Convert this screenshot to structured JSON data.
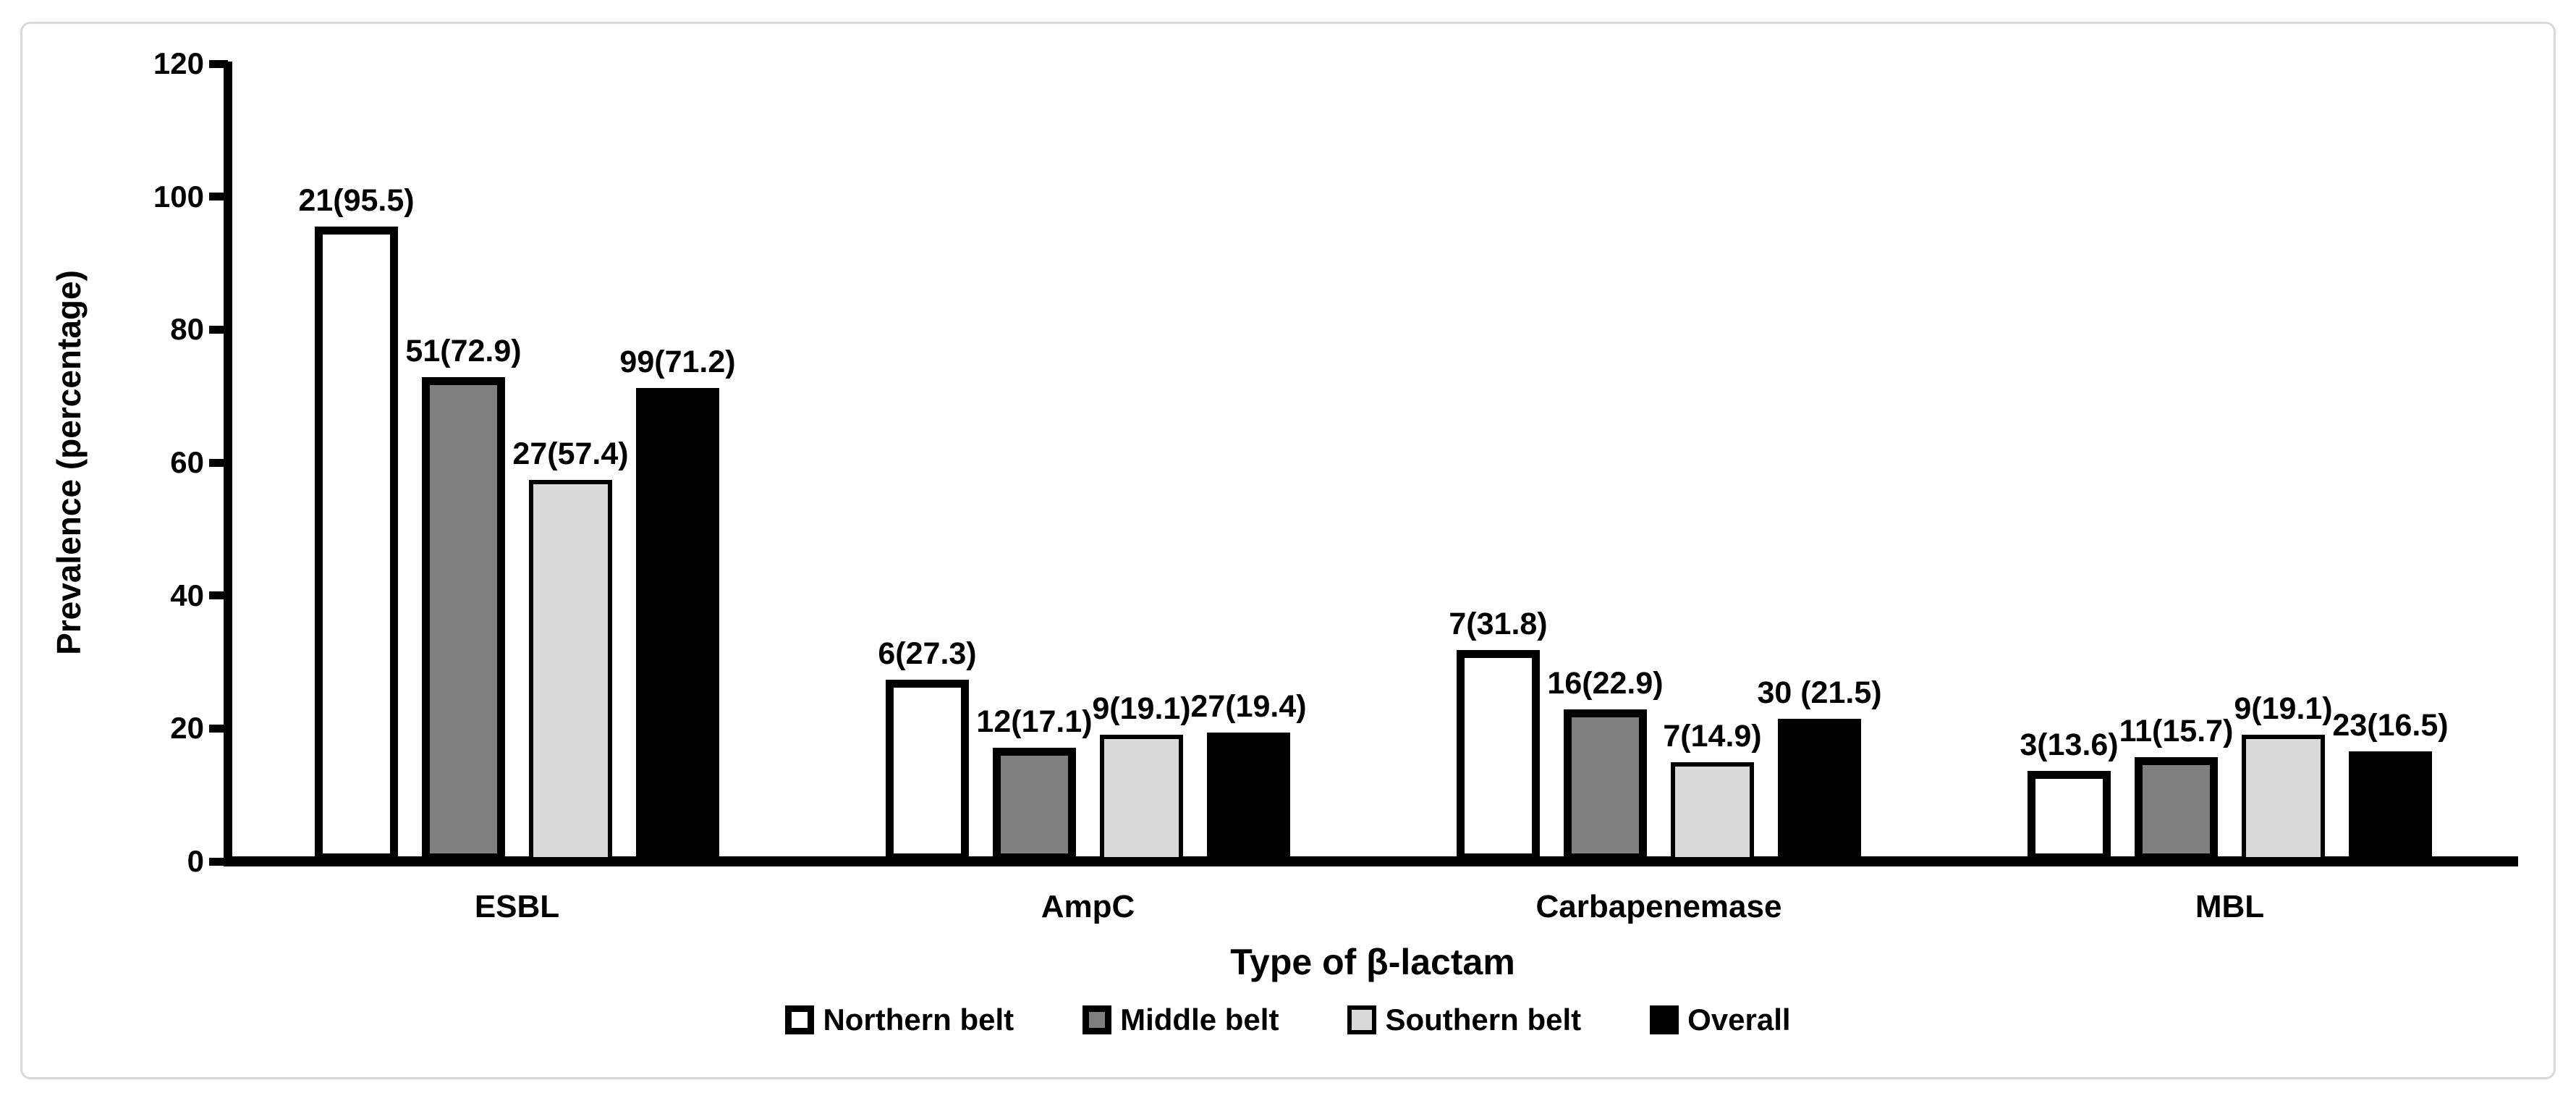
{
  "figure": {
    "background": "#ffffff",
    "border_color": "#d9d9d9",
    "axis_color": "#000000"
  },
  "chart_data": {
    "type": "bar",
    "title": "",
    "xlabel": "Type of β-lactam",
    "ylabel": "Prevalence (percentage)",
    "ylim": [
      0,
      120
    ],
    "yticks": [
      0,
      20,
      40,
      60,
      80,
      100,
      120
    ],
    "grid": false,
    "legend_position": "bottom-center",
    "categories": [
      "ESBL",
      "AmpC",
      "Carbapenemase",
      "MBL"
    ],
    "series": [
      {
        "name": "Northern belt",
        "fill": "#ffffff",
        "border_color": "#000000",
        "border_px": 11,
        "values": [
          95.5,
          27.3,
          31.8,
          13.6
        ],
        "labels": [
          "21(95.5)",
          "6(27.3)",
          "7(31.8)",
          "3(13.6)"
        ]
      },
      {
        "name": "Middle belt",
        "fill": "#7f7f7f",
        "border_color": "#000000",
        "border_px": 11,
        "values": [
          72.9,
          17.1,
          22.9,
          15.7
        ],
        "labels": [
          "51(72.9)",
          "12(17.1)",
          "16(22.9)",
          "11(15.7)"
        ]
      },
      {
        "name": "Southern belt",
        "fill": "#d9d9d9",
        "border_color": "#000000",
        "border_px": 6,
        "values": [
          57.4,
          19.1,
          14.9,
          19.1
        ],
        "labels": [
          "27(57.4)",
          "9(19.1)",
          "7(14.9)",
          "9(19.1)"
        ]
      },
      {
        "name": "Overall",
        "fill": "#000000",
        "border_color": "#000000",
        "border_px": 0,
        "values": [
          71.2,
          19.4,
          21.5,
          16.5
        ],
        "labels": [
          "99(71.2)",
          "27(19.4)",
          "30 (21.5)",
          "23(16.5)"
        ]
      }
    ]
  }
}
